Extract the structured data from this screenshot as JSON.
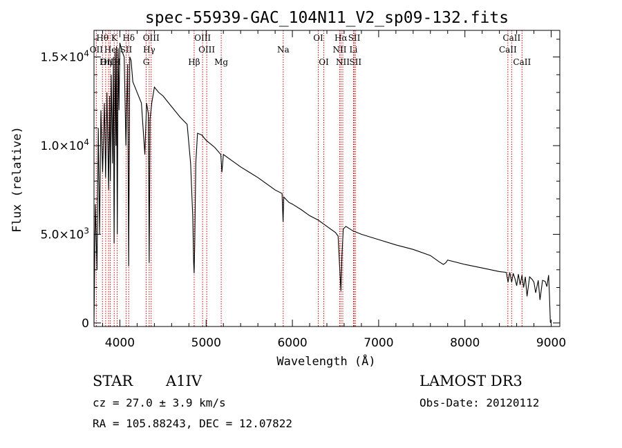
{
  "chart_data": {
    "type": "line",
    "title": "spec-55939-GAC_104N11_V2_sp09-132.fits",
    "xlabel": "Wavelength (Å)",
    "ylabel": "Flux (relative)",
    "xlim": [
      3700,
      9100
    ],
    "ylim": [
      -200,
      16500
    ],
    "x_ticks": [
      4000,
      5000,
      6000,
      7000,
      8000,
      9000
    ],
    "x_tick_labels": [
      "4000",
      "5000",
      "6000",
      "7000",
      "8000",
      "9000"
    ],
    "y_ticks": [
      0,
      5000,
      10000,
      15000
    ],
    "y_tick_mantissa": [
      "0",
      "5.0×10",
      "1.0×10",
      "1.5×10"
    ],
    "y_tick_exponent": [
      "",
      "3",
      "4",
      "4"
    ],
    "series": [
      {
        "name": "spectrum",
        "x": [
          3700,
          3715,
          3735,
          3750,
          3765,
          3780,
          3800,
          3820,
          3835,
          3850,
          3870,
          3880,
          3890,
          3900,
          3915,
          3925,
          3933,
          3945,
          3955,
          3960,
          3970,
          3980,
          3990,
          4000,
          4020,
          4050,
          4070,
          4090,
          4102,
          4115,
          4130,
          4150,
          4200,
          4250,
          4290,
          4310,
          4330,
          4340,
          4350,
          4370,
          4400,
          4450,
          4500,
          4600,
          4700,
          4780,
          4820,
          4845,
          4855,
          4861,
          4868,
          4880,
          4900,
          4950,
          5000,
          5100,
          5170,
          5183,
          5200,
          5300,
          5400,
          5500,
          5600,
          5700,
          5800,
          5880,
          5892,
          5900,
          5960,
          6000,
          6100,
          6200,
          6300,
          6400,
          6500,
          6530,
          6550,
          6563,
          6575,
          6590,
          6620,
          6700,
          6800,
          7000,
          7200,
          7400,
          7600,
          7700,
          7750,
          7780,
          7800,
          8000,
          8200,
          8400,
          8480,
          8500,
          8520,
          8542,
          8560,
          8580,
          8600,
          8620,
          8640,
          8662,
          8680,
          8700,
          8720,
          8750,
          8780,
          8800,
          8820,
          8850,
          8870,
          8900,
          8930,
          8950,
          8970,
          8980,
          8990,
          9000
        ],
        "y": [
          0,
          6700,
          3000,
          11000,
          5000,
          12000,
          8500,
          12400,
          8200,
          13000,
          7500,
          12800,
          8000,
          14000,
          9000,
          15000,
          4500,
          15300,
          10000,
          15600,
          5000,
          15500,
          12000,
          15800,
          15400,
          15000,
          10000,
          14600,
          3200,
          15000,
          14800,
          13600,
          13000,
          12400,
          9500,
          12400,
          11800,
          3400,
          11500,
          12400,
          13300,
          13000,
          12800,
          12200,
          11600,
          11200,
          9000,
          6000,
          3400,
          2800,
          4500,
          9000,
          10700,
          10600,
          10300,
          9900,
          9500,
          8500,
          9500,
          9150,
          8800,
          8500,
          8200,
          7850,
          7500,
          7300,
          5700,
          7100,
          6800,
          6700,
          6400,
          6050,
          5800,
          5450,
          5100,
          4900,
          3000,
          1800,
          3800,
          5300,
          5450,
          5200,
          5000,
          4700,
          4400,
          4150,
          3800,
          3450,
          3300,
          3400,
          3550,
          3300,
          3100,
          2900,
          2850,
          2300,
          2850,
          2300,
          2800,
          2500,
          2100,
          2750,
          2150,
          2700,
          2000,
          2600,
          1500,
          2600,
          2450,
          2300,
          1700,
          2400,
          1300,
          2400,
          2350,
          2050,
          2700,
          1600,
          50,
          0
        ]
      }
    ],
    "spectral_lines": [
      {
        "label": "Hθ",
        "wl": 3798,
        "row": 0
      },
      {
        "label": "OII",
        "wl": 3727,
        "row": 1
      },
      {
        "label": "OIII",
        "wl": 3869,
        "row": 2
      },
      {
        "label": "Hη",
        "wl": 3835,
        "row": 2
      },
      {
        "label": "He",
        "wl": 3889,
        "row": 1
      },
      {
        "label": "K",
        "wl": 3934,
        "row": 0
      },
      {
        "label": "H",
        "wl": 3969,
        "row": 2
      },
      {
        "label": "SII",
        "wl": 4072,
        "row": 1
      },
      {
        "label": "Hδ",
        "wl": 4102,
        "row": 0
      },
      {
        "label": "OIII",
        "wl": 4363,
        "row": 0
      },
      {
        "label": "Hγ",
        "wl": 4340,
        "row": 1
      },
      {
        "label": "G",
        "wl": 4305,
        "row": 2
      },
      {
        "label": "Hβ",
        "wl": 4861,
        "row": 2
      },
      {
        "label": "OIII",
        "wl": 4959,
        "row": 0
      },
      {
        "label": "OIII",
        "wl": 5007,
        "row": 1
      },
      {
        "label": "Mg",
        "wl": 5175,
        "row": 2
      },
      {
        "label": "Na",
        "wl": 5894,
        "row": 1
      },
      {
        "label": "OI",
        "wl": 6300,
        "row": 0
      },
      {
        "label": "OI",
        "wl": 6364,
        "row": 2
      },
      {
        "label": "Hα",
        "wl": 6563,
        "row": 0
      },
      {
        "label": "NII",
        "wl": 6548,
        "row": 1
      },
      {
        "label": "NII",
        "wl": 6584,
        "row": 2
      },
      {
        "label": "Li",
        "wl": 6708,
        "row": 1
      },
      {
        "label": "SII",
        "wl": 6717,
        "row": 0
      },
      {
        "label": "SII",
        "wl": 6731,
        "row": 2
      },
      {
        "label": "CaII",
        "wl": 8498,
        "row": 1
      },
      {
        "label": "CaII",
        "wl": 8542,
        "row": 0
      },
      {
        "label": "CaII",
        "wl": 8662,
        "row": 2
      }
    ]
  },
  "info": {
    "object_class": "STAR",
    "subclass": "A1IV",
    "survey": "LAMOST DR3",
    "cz": "cz = 27.0 ± 3.9 km/s",
    "obs_date": "Obs-Date: 20120112",
    "coords": "RA = 105.88243, DEC =  12.07822"
  },
  "colors": {
    "axis": "#000000",
    "spectrum": "#000000",
    "line_marker": "#cc0000"
  }
}
